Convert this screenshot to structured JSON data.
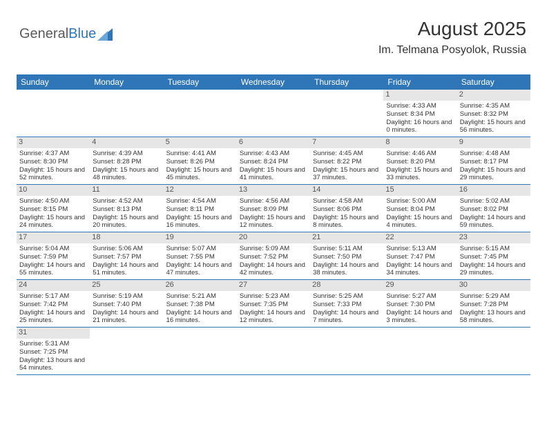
{
  "logo": {
    "word1": "General",
    "word2": "Blue",
    "word1_color": "#5a5a5a",
    "word2_color": "#2f76b8"
  },
  "header": {
    "title": "August 2025",
    "location": "Im. Telmana Posyolok, Russia"
  },
  "colors": {
    "header_bar": "#2f76b8",
    "daynum_bg": "#e6e6e6",
    "week_border": "#2f76b8",
    "page_bg": "#ffffff",
    "text": "#333333"
  },
  "daynames": [
    "Sunday",
    "Monday",
    "Tuesday",
    "Wednesday",
    "Thursday",
    "Friday",
    "Saturday"
  ],
  "weeks": [
    [
      {
        "n": "",
        "sr": "",
        "ss": "",
        "dl": ""
      },
      {
        "n": "",
        "sr": "",
        "ss": "",
        "dl": ""
      },
      {
        "n": "",
        "sr": "",
        "ss": "",
        "dl": ""
      },
      {
        "n": "",
        "sr": "",
        "ss": "",
        "dl": ""
      },
      {
        "n": "",
        "sr": "",
        "ss": "",
        "dl": ""
      },
      {
        "n": "1",
        "sr": "Sunrise: 4:33 AM",
        "ss": "Sunset: 8:34 PM",
        "dl": "Daylight: 16 hours and 0 minutes."
      },
      {
        "n": "2",
        "sr": "Sunrise: 4:35 AM",
        "ss": "Sunset: 8:32 PM",
        "dl": "Daylight: 15 hours and 56 minutes."
      }
    ],
    [
      {
        "n": "3",
        "sr": "Sunrise: 4:37 AM",
        "ss": "Sunset: 8:30 PM",
        "dl": "Daylight: 15 hours and 52 minutes."
      },
      {
        "n": "4",
        "sr": "Sunrise: 4:39 AM",
        "ss": "Sunset: 8:28 PM",
        "dl": "Daylight: 15 hours and 48 minutes."
      },
      {
        "n": "5",
        "sr": "Sunrise: 4:41 AM",
        "ss": "Sunset: 8:26 PM",
        "dl": "Daylight: 15 hours and 45 minutes."
      },
      {
        "n": "6",
        "sr": "Sunrise: 4:43 AM",
        "ss": "Sunset: 8:24 PM",
        "dl": "Daylight: 15 hours and 41 minutes."
      },
      {
        "n": "7",
        "sr": "Sunrise: 4:45 AM",
        "ss": "Sunset: 8:22 PM",
        "dl": "Daylight: 15 hours and 37 minutes."
      },
      {
        "n": "8",
        "sr": "Sunrise: 4:46 AM",
        "ss": "Sunset: 8:20 PM",
        "dl": "Daylight: 15 hours and 33 minutes."
      },
      {
        "n": "9",
        "sr": "Sunrise: 4:48 AM",
        "ss": "Sunset: 8:17 PM",
        "dl": "Daylight: 15 hours and 29 minutes."
      }
    ],
    [
      {
        "n": "10",
        "sr": "Sunrise: 4:50 AM",
        "ss": "Sunset: 8:15 PM",
        "dl": "Daylight: 15 hours and 24 minutes."
      },
      {
        "n": "11",
        "sr": "Sunrise: 4:52 AM",
        "ss": "Sunset: 8:13 PM",
        "dl": "Daylight: 15 hours and 20 minutes."
      },
      {
        "n": "12",
        "sr": "Sunrise: 4:54 AM",
        "ss": "Sunset: 8:11 PM",
        "dl": "Daylight: 15 hours and 16 minutes."
      },
      {
        "n": "13",
        "sr": "Sunrise: 4:56 AM",
        "ss": "Sunset: 8:09 PM",
        "dl": "Daylight: 15 hours and 12 minutes."
      },
      {
        "n": "14",
        "sr": "Sunrise: 4:58 AM",
        "ss": "Sunset: 8:06 PM",
        "dl": "Daylight: 15 hours and 8 minutes."
      },
      {
        "n": "15",
        "sr": "Sunrise: 5:00 AM",
        "ss": "Sunset: 8:04 PM",
        "dl": "Daylight: 15 hours and 4 minutes."
      },
      {
        "n": "16",
        "sr": "Sunrise: 5:02 AM",
        "ss": "Sunset: 8:02 PM",
        "dl": "Daylight: 14 hours and 59 minutes."
      }
    ],
    [
      {
        "n": "17",
        "sr": "Sunrise: 5:04 AM",
        "ss": "Sunset: 7:59 PM",
        "dl": "Daylight: 14 hours and 55 minutes."
      },
      {
        "n": "18",
        "sr": "Sunrise: 5:06 AM",
        "ss": "Sunset: 7:57 PM",
        "dl": "Daylight: 14 hours and 51 minutes."
      },
      {
        "n": "19",
        "sr": "Sunrise: 5:07 AM",
        "ss": "Sunset: 7:55 PM",
        "dl": "Daylight: 14 hours and 47 minutes."
      },
      {
        "n": "20",
        "sr": "Sunrise: 5:09 AM",
        "ss": "Sunset: 7:52 PM",
        "dl": "Daylight: 14 hours and 42 minutes."
      },
      {
        "n": "21",
        "sr": "Sunrise: 5:11 AM",
        "ss": "Sunset: 7:50 PM",
        "dl": "Daylight: 14 hours and 38 minutes."
      },
      {
        "n": "22",
        "sr": "Sunrise: 5:13 AM",
        "ss": "Sunset: 7:47 PM",
        "dl": "Daylight: 14 hours and 34 minutes."
      },
      {
        "n": "23",
        "sr": "Sunrise: 5:15 AM",
        "ss": "Sunset: 7:45 PM",
        "dl": "Daylight: 14 hours and 29 minutes."
      }
    ],
    [
      {
        "n": "24",
        "sr": "Sunrise: 5:17 AM",
        "ss": "Sunset: 7:42 PM",
        "dl": "Daylight: 14 hours and 25 minutes."
      },
      {
        "n": "25",
        "sr": "Sunrise: 5:19 AM",
        "ss": "Sunset: 7:40 PM",
        "dl": "Daylight: 14 hours and 21 minutes."
      },
      {
        "n": "26",
        "sr": "Sunrise: 5:21 AM",
        "ss": "Sunset: 7:38 PM",
        "dl": "Daylight: 14 hours and 16 minutes."
      },
      {
        "n": "27",
        "sr": "Sunrise: 5:23 AM",
        "ss": "Sunset: 7:35 PM",
        "dl": "Daylight: 14 hours and 12 minutes."
      },
      {
        "n": "28",
        "sr": "Sunrise: 5:25 AM",
        "ss": "Sunset: 7:33 PM",
        "dl": "Daylight: 14 hours and 7 minutes."
      },
      {
        "n": "29",
        "sr": "Sunrise: 5:27 AM",
        "ss": "Sunset: 7:30 PM",
        "dl": "Daylight: 14 hours and 3 minutes."
      },
      {
        "n": "30",
        "sr": "Sunrise: 5:29 AM",
        "ss": "Sunset: 7:28 PM",
        "dl": "Daylight: 13 hours and 58 minutes."
      }
    ],
    [
      {
        "n": "31",
        "sr": "Sunrise: 5:31 AM",
        "ss": "Sunset: 7:25 PM",
        "dl": "Daylight: 13 hours and 54 minutes."
      },
      {
        "n": "",
        "sr": "",
        "ss": "",
        "dl": ""
      },
      {
        "n": "",
        "sr": "",
        "ss": "",
        "dl": ""
      },
      {
        "n": "",
        "sr": "",
        "ss": "",
        "dl": ""
      },
      {
        "n": "",
        "sr": "",
        "ss": "",
        "dl": ""
      },
      {
        "n": "",
        "sr": "",
        "ss": "",
        "dl": ""
      },
      {
        "n": "",
        "sr": "",
        "ss": "",
        "dl": ""
      }
    ]
  ]
}
